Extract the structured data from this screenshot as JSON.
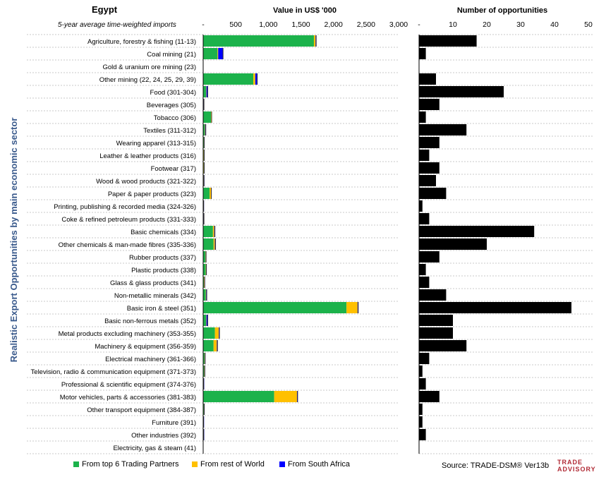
{
  "header": {
    "country": "Egypt",
    "subtitle": "5-year average time-weighted imports",
    "value_title": "Value in US$ '000",
    "opps_title": "Number of opportunities"
  },
  "y_axis_title": "Realistic Export Opportunities by main economic sector",
  "legend": [
    {
      "label": "From top 6 Trading Partners",
      "color": "#1cb24b"
    },
    {
      "label": "From rest of World",
      "color": "#ffc000"
    },
    {
      "label": "From South Africa",
      "color": "#0000ff"
    }
  ],
  "source": "Source: TRADE-DSM®  Ver13b",
  "logo": {
    "line1": "TRADE",
    "line2": "ADVISORY"
  },
  "chart_data": [
    {
      "type": "bar",
      "orientation": "horizontal",
      "stacked": true,
      "title": "Value in US$ '000",
      "xlim": [
        0,
        3000
      ],
      "xticks": [
        "-",
        "500",
        "1,000",
        "1,500",
        "2,000",
        "2,500",
        "3,000"
      ],
      "categories": [
        "Agriculture, forestry & fishing (11-13)",
        "Coal mining (21)",
        "Gold & uranium ore mining (23)",
        "Other mining (22, 24, 25, 29, 39)",
        "Food (301-304)",
        "Beverages (305)",
        "Tobacco (306)",
        "Textiles (311-312)",
        "Wearing apparel (313-315)",
        "Leather & leather products (316)",
        "Footwear (317)",
        "Wood & wood products (321-322)",
        "Paper & paper products (323)",
        "Printing, publishing & recorded media (324-326)",
        "Coke & refined petroleum products (331-333)",
        "Basic chemicals (334)",
        "Other chemicals & man-made fibres (335-336)",
        "Rubber products (337)",
        "Plastic products (338)",
        "Glass & glass products (341)",
        "Non-metallic minerals (342)",
        "Basic iron & steel (351)",
        "Basic non-ferrous metals (352)",
        "Metal products excluding machinery (353-355)",
        "Machinery & equipment (356-359)",
        "Electrical machinery (361-366)",
        "Television, radio & communication equipment (371-373)",
        "Professional & scientific equipment (374-376)",
        "Motor vehicles, parts & accessories (381-383)",
        "Other transport equipment (384-387)",
        "Furniture (391)",
        "Other industries (392)",
        "Electricity, gas & steam (41)"
      ],
      "series": [
        {
          "name": "From top 6 Trading Partners",
          "color": "#1cb24b",
          "values": [
            1700,
            220,
            0,
            770,
            45,
            5,
            120,
            25,
            10,
            8,
            8,
            8,
            100,
            3,
            5,
            150,
            160,
            35,
            40,
            12,
            40,
            2200,
            45,
            180,
            160,
            20,
            15,
            5,
            1090,
            10,
            3,
            5,
            0
          ]
        },
        {
          "name": "From rest of World",
          "color": "#ffc000",
          "values": [
            25,
            10,
            0,
            30,
            5,
            2,
            5,
            5,
            3,
            5,
            5,
            2,
            20,
            1,
            2,
            20,
            20,
            5,
            5,
            8,
            5,
            170,
            5,
            60,
            50,
            5,
            5,
            2,
            350,
            2,
            2,
            2,
            0
          ]
        },
        {
          "name": "From South Africa",
          "color": "#0000ff",
          "values": [
            10,
            75,
            0,
            30,
            20,
            5,
            5,
            10,
            3,
            3,
            3,
            3,
            5,
            3,
            5,
            10,
            10,
            5,
            5,
            3,
            10,
            10,
            20,
            10,
            10,
            5,
            5,
            1,
            10,
            5,
            1,
            1,
            0
          ]
        }
      ]
    },
    {
      "type": "bar",
      "orientation": "horizontal",
      "title": "Number of opportunities",
      "xlim": [
        0,
        50
      ],
      "xticks": [
        "-",
        "10",
        "20",
        "30",
        "40",
        "50"
      ],
      "values": [
        17,
        2,
        0,
        5,
        25,
        6,
        2,
        14,
        6,
        3,
        6,
        5,
        8,
        1,
        3,
        34,
        20,
        6,
        2,
        3,
        8,
        45,
        10,
        10,
        14,
        3,
        1,
        2,
        6,
        1,
        1,
        2,
        0
      ],
      "color": "#000000"
    }
  ]
}
